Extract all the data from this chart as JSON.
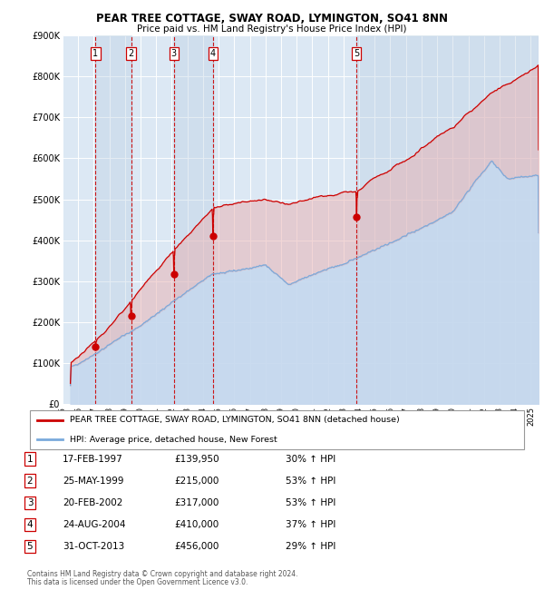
{
  "title": "PEAR TREE COTTAGE, SWAY ROAD, LYMINGTON, SO41 8NN",
  "subtitle": "Price paid vs. HM Land Registry's House Price Index (HPI)",
  "legend_line1": "PEAR TREE COTTAGE, SWAY ROAD, LYMINGTON, SO41 8NN (detached house)",
  "legend_line2": "HPI: Average price, detached house, New Forest",
  "footnote1": "Contains HM Land Registry data © Crown copyright and database right 2024.",
  "footnote2": "This data is licensed under the Open Government Licence v3.0.",
  "red_color": "#cc0000",
  "blue_color": "#7aaadc",
  "blue_fill": "#c5d8ee",
  "plot_bg": "#dce8f4",
  "transactions": [
    {
      "num": 1,
      "date": "17-FEB-1997",
      "price": 139950,
      "pct": "30%",
      "x_year": 1997.12
    },
    {
      "num": 2,
      "date": "25-MAY-1999",
      "price": 215000,
      "pct": "53%",
      "x_year": 1999.39
    },
    {
      "num": 3,
      "date": "20-FEB-2002",
      "price": 317000,
      "pct": "53%",
      "x_year": 2002.13
    },
    {
      "num": 4,
      "date": "24-AUG-2004",
      "price": 410000,
      "pct": "37%",
      "x_year": 2004.64
    },
    {
      "num": 5,
      "date": "31-OCT-2013",
      "price": 456000,
      "pct": "29%",
      "x_year": 2013.83
    }
  ],
  "table_rows": [
    [
      "1",
      "17-FEB-1997",
      "£139,950",
      "30% ↑ HPI"
    ],
    [
      "2",
      "25-MAY-1999",
      "£215,000",
      "53% ↑ HPI"
    ],
    [
      "3",
      "20-FEB-2002",
      "£317,000",
      "53% ↑ HPI"
    ],
    [
      "4",
      "24-AUG-2004",
      "£410,000",
      "37% ↑ HPI"
    ],
    [
      "5",
      "31-OCT-2013",
      "£456,000",
      "29% ↑ HPI"
    ]
  ],
  "ylim": [
    0,
    900000
  ],
  "xlim_start": 1995.5,
  "xlim_end": 2025.5,
  "yticks": [
    0,
    100000,
    200000,
    300000,
    400000,
    500000,
    600000,
    700000,
    800000,
    900000
  ],
  "ytick_labels": [
    "£0",
    "£100K",
    "£200K",
    "£300K",
    "£400K",
    "£500K",
    "£600K",
    "£700K",
    "£800K",
    "£900K"
  ]
}
